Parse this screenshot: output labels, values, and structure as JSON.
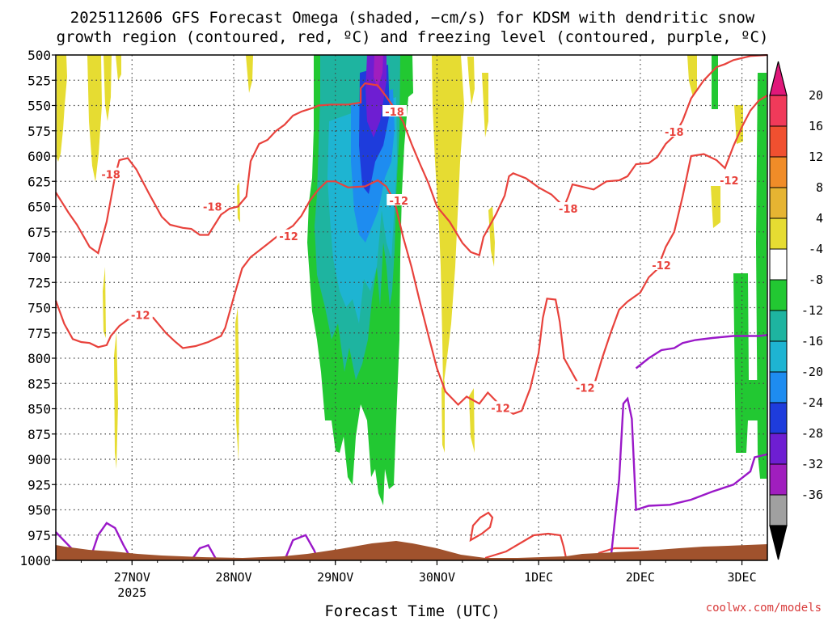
{
  "chart_data": {
    "type": "heatmap",
    "title_line1": "2025112606 GFS Forecast Omega (shaded, −cm/s) for KDSM with dendritic snow",
    "title_line2": "growth region (contoured, red, ºC) and freezing level (contoured, purple, ºC)",
    "xlabel": "Forecast Time (UTC)",
    "x_ticks": [
      "27NOV",
      "28NOV",
      "29NOV",
      "30NOV",
      "1DEC",
      "2DEC",
      "3DEC"
    ],
    "x_tick_year": "2025",
    "x_range_hours": [
      0,
      168
    ],
    "y_ticks": [
      "500",
      "525",
      "550",
      "575",
      "600",
      "625",
      "650",
      "675",
      "700",
      "725",
      "750",
      "775",
      "800",
      "825",
      "850",
      "875",
      "900",
      "925",
      "950",
      "975",
      "1000"
    ],
    "ylim": [
      1000,
      500
    ],
    "grid": "dotted",
    "colorbar_labels": [
      "20",
      "16",
      "12",
      "8",
      "4",
      "-4",
      "-8",
      "-12",
      "-16",
      "-20",
      "-24",
      "-28",
      "-32",
      "-36"
    ],
    "colorbar_colors": [
      "#f03a5a",
      "#f05030",
      "#f08c28",
      "#e6b432",
      "#e6dc32",
      "#ffffff",
      "#22c832",
      "#1eb4a0",
      "#1eb4d2",
      "#1e8cf0",
      "#1e3cdc",
      "#6e1ed2",
      "#a01ebe",
      "#a0a0a0"
    ],
    "contour_labels": [
      {
        "text": "-18",
        "hour": 13,
        "p": 618
      },
      {
        "text": "-18",
        "hour": 37,
        "p": 650
      },
      {
        "text": "-12",
        "hour": 55,
        "p": 679
      },
      {
        "text": "-18",
        "hour": 80,
        "p": 556
      },
      {
        "text": "-12",
        "hour": 81,
        "p": 644
      },
      {
        "text": "-12",
        "hour": 20,
        "p": 757
      },
      {
        "text": "-12",
        "hour": 105,
        "p": 849
      },
      {
        "text": "-18",
        "hour": 121,
        "p": 652
      },
      {
        "text": "-12",
        "hour": 125,
        "p": 829
      },
      {
        "text": "-12",
        "hour": 143,
        "p": 708
      },
      {
        "text": "-18",
        "hour": 146,
        "p": 576
      },
      {
        "text": "-12",
        "hour": 159,
        "p": 624
      }
    ],
    "dgz_upper_curve": [
      [
        0,
        636
      ],
      [
        3,
        656
      ],
      [
        5,
        668
      ],
      [
        8,
        690
      ],
      [
        10,
        696
      ],
      [
        12,
        665
      ],
      [
        14,
        620
      ],
      [
        15,
        604
      ],
      [
        17,
        602
      ],
      [
        19,
        613
      ],
      [
        22,
        637
      ],
      [
        25,
        660
      ],
      [
        27,
        668
      ],
      [
        30,
        671
      ],
      [
        32,
        672
      ],
      [
        34,
        678
      ],
      [
        36,
        678
      ],
      [
        39,
        658
      ],
      [
        41,
        652
      ],
      [
        43,
        650
      ],
      [
        45,
        640
      ],
      [
        46,
        605
      ],
      [
        48,
        588
      ],
      [
        50,
        584
      ],
      [
        52,
        575
      ],
      [
        54,
        569
      ],
      [
        56,
        560
      ],
      [
        58,
        556
      ],
      [
        61,
        552
      ],
      [
        62,
        550
      ],
      [
        65,
        549
      ],
      [
        69,
        549
      ],
      [
        72,
        547
      ],
      [
        72,
        533
      ],
      [
        73,
        528
      ],
      [
        76,
        530
      ],
      [
        78,
        541
      ],
      [
        80,
        553
      ],
      [
        82,
        566
      ],
      [
        84,
        588
      ],
      [
        86,
        608
      ],
      [
        88,
        627
      ],
      [
        90,
        650
      ],
      [
        93,
        665
      ],
      [
        96,
        686
      ],
      [
        98,
        695
      ],
      [
        100,
        698
      ],
      [
        101,
        680
      ],
      [
        104,
        657
      ],
      [
        106,
        639
      ],
      [
        107,
        620
      ],
      [
        108,
        617
      ],
      [
        111,
        622
      ],
      [
        114,
        631
      ],
      [
        117,
        638
      ],
      [
        119,
        646
      ],
      [
        120,
        650
      ],
      [
        121,
        640
      ],
      [
        122,
        628
      ],
      [
        127,
        633
      ],
      [
        130,
        625
      ],
      [
        133,
        624
      ],
      [
        135,
        620
      ],
      [
        137,
        608
      ],
      [
        140,
        607
      ],
      [
        142,
        601
      ],
      [
        144,
        588
      ],
      [
        146,
        580
      ],
      [
        148,
        565
      ],
      [
        150,
        543
      ],
      [
        153,
        525
      ],
      [
        156,
        512
      ],
      [
        158,
        509
      ],
      [
        160,
        505
      ],
      [
        164,
        501
      ],
      [
        168,
        500
      ]
    ],
    "dgz_lower_curve": [
      [
        0,
        743
      ],
      [
        2,
        766
      ],
      [
        4,
        781
      ],
      [
        6,
        784
      ],
      [
        8,
        785
      ],
      [
        10,
        789
      ],
      [
        12,
        787
      ],
      [
        13,
        778
      ],
      [
        15,
        768
      ],
      [
        17,
        762
      ],
      [
        20,
        757
      ],
      [
        23,
        760
      ],
      [
        26,
        775
      ],
      [
        28,
        783
      ],
      [
        30,
        790
      ],
      [
        33,
        788
      ],
      [
        36,
        784
      ],
      [
        39,
        778
      ],
      [
        40,
        770
      ],
      [
        42,
        740
      ],
      [
        44,
        711
      ],
      [
        46,
        700
      ],
      [
        50,
        687
      ],
      [
        53,
        677
      ],
      [
        56,
        669
      ],
      [
        58,
        659
      ],
      [
        60,
        644
      ],
      [
        62,
        633
      ],
      [
        64,
        625
      ],
      [
        66,
        625
      ],
      [
        69,
        631
      ],
      [
        73,
        630
      ],
      [
        76,
        624
      ],
      [
        78,
        630
      ],
      [
        80,
        645
      ],
      [
        82,
        680
      ],
      [
        84,
        710
      ],
      [
        86,
        745
      ],
      [
        88,
        778
      ],
      [
        90,
        810
      ],
      [
        92,
        833
      ],
      [
        95,
        846
      ],
      [
        97,
        838
      ],
      [
        100,
        845
      ],
      [
        102,
        834
      ],
      [
        105,
        847
      ],
      [
        108,
        855
      ],
      [
        110,
        852
      ],
      [
        112,
        830
      ],
      [
        114,
        795
      ],
      [
        115,
        760
      ],
      [
        116,
        741
      ],
      [
        118,
        742
      ],
      [
        119,
        764
      ],
      [
        120,
        800
      ],
      [
        122,
        815
      ],
      [
        124,
        830
      ],
      [
        127,
        828
      ],
      [
        129,
        800
      ],
      [
        131,
        775
      ],
      [
        133,
        752
      ],
      [
        135,
        744
      ],
      [
        138,
        735
      ],
      [
        140,
        720
      ],
      [
        142,
        712
      ],
      [
        144,
        690
      ],
      [
        146,
        675
      ],
      [
        148,
        640
      ],
      [
        150,
        600
      ],
      [
        153,
        598
      ],
      [
        156,
        604
      ],
      [
        158,
        612
      ],
      [
        160,
        590
      ],
      [
        162,
        571
      ],
      [
        164,
        555
      ],
      [
        166,
        545
      ],
      [
        168,
        540
      ]
    ],
    "freezing_curves": [
      [
        [
          0,
          972
        ],
        [
          3,
          985
        ],
        [
          6,
          998
        ]
      ],
      [
        [
          8,
          1000
        ],
        [
          10,
          975
        ],
        [
          12,
          963
        ],
        [
          14,
          968
        ],
        [
          16,
          985
        ],
        [
          18,
          1000
        ]
      ],
      [
        [
          32,
          1000
        ],
        [
          34,
          988
        ],
        [
          36,
          985
        ],
        [
          38,
          1000
        ]
      ],
      [
        [
          54,
          1000
        ],
        [
          56,
          980
        ],
        [
          59,
          975
        ],
        [
          61,
          990
        ],
        [
          62,
          1000
        ]
      ],
      [
        [
          131,
          1000
        ],
        [
          133,
          920
        ],
        [
          134,
          845
        ],
        [
          135,
          840
        ],
        [
          136,
          860
        ],
        [
          137,
          950
        ],
        [
          140,
          946
        ],
        [
          145,
          945
        ],
        [
          150,
          940
        ],
        [
          155,
          932
        ],
        [
          160,
          925
        ],
        [
          164,
          912
        ],
        [
          165,
          898
        ],
        [
          166,
          897
        ],
        [
          167,
          896
        ],
        [
          168,
          895
        ]
      ],
      [
        [
          137,
          810
        ],
        [
          140,
          800
        ],
        [
          143,
          792
        ],
        [
          146,
          790
        ],
        [
          148,
          785
        ],
        [
          151,
          782
        ],
        [
          155,
          780
        ],
        [
          160,
          778
        ],
        [
          164,
          778
        ],
        [
          166,
          778
        ],
        [
          168,
          777
        ]
      ]
    ]
  },
  "watermark": "coolwx.com/models"
}
